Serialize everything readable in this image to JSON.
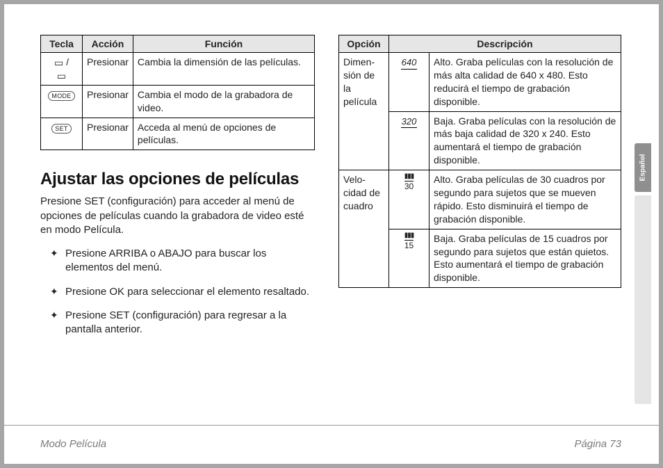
{
  "leftTable": {
    "headers": [
      "Tecla",
      "Acción",
      "Función"
    ],
    "rows": [
      {
        "iconHtml": "<span class='sym-cam'>▭</span> / <br><span class='sym-cam'>▭</span>",
        "action": "Presionar",
        "func": "Cambia la dimensión de las pelícu­las."
      },
      {
        "iconHtml": "<span class='key-box'>MODE</span>",
        "action": "Presionar",
        "func": "Cambia el modo de la grabadora de video."
      },
      {
        "iconHtml": "<span class='key-box'>SET</span>",
        "action": "Presionar",
        "func": "Acceda al menú de opciones de películas."
      }
    ]
  },
  "heading": "Ajustar las opciones de películas",
  "intro": "Presione SET (configuración) para acceder al menú de opciones de películas cuando la grabadora de video esté en modo Película.",
  "bullets": [
    "Presione ARRIBA o ABAJO para buscar los elementos del menú.",
    "Presione OK para seleccionar el elemento resaltado.",
    "Presione SET (configuración) para regresar a la pantalla anterior."
  ],
  "rightTable": {
    "headers": [
      "Opción",
      "Descripción"
    ],
    "descColspan": 2,
    "groups": [
      {
        "option": "Dimen­sión de la película",
        "rows": [
          {
            "iconHtml": "<span class='sym-640'>640</span>",
            "desc": "Alto. Graba películas con la reso­lución de más alta calidad de 640 x 480. Esto reducirá el tiempo de grabación disponible."
          },
          {
            "iconHtml": "<span class='sym-320'>320</span>",
            "desc": "Baja. Graba películas con la reso­lución de más baja calidad de 320 x 240. Esto aumentará el tiempo de grabación disponible."
          }
        ]
      },
      {
        "option": "Velo­cidad de cuadro",
        "rows": [
          {
            "iconHtml": "<span class='sym-frame'><span class='bars'>▮▮▮</span><span class='mid'>30</span></span>",
            "desc": "Alto. Graba películas de 30 cuadros por segundo para sujetos que se mueven rápido. Esto disminuirá el tiempo de grabación disponible."
          },
          {
            "iconHtml": "<span class='sym-frame'><span class='bars'>▮▮▮</span><span class='mid'>15</span></span>",
            "desc": "Baja. Graba películas de 15 cuadros por segundo para sujetos que están quietos. Esto aumentará el tiempo de grabación disponible."
          }
        ]
      }
    ]
  },
  "footer": {
    "left": "Modo Película",
    "right": "Página 73"
  },
  "sideTab": "Español"
}
